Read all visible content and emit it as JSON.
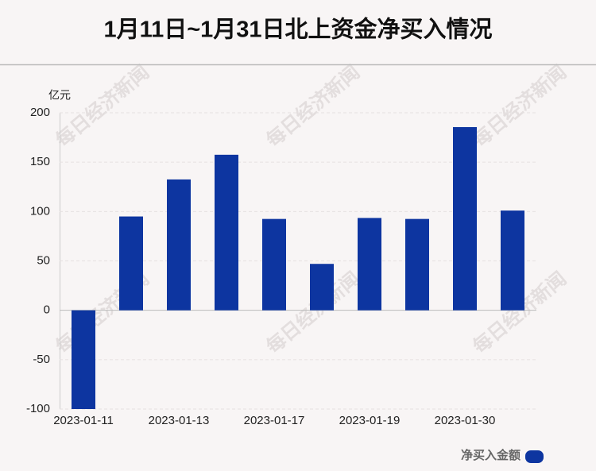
{
  "chart_data": {
    "type": "bar",
    "title": "1月11日~1月31日北上资金净买入情况",
    "y_unit": "亿元",
    "categories": [
      "2023-01-11",
      null,
      "2023-01-13",
      null,
      "2023-01-17",
      null,
      "2023-01-19",
      null,
      "2023-01-30",
      null
    ],
    "series": [
      {
        "name": "净买入金额",
        "color": "#0d35a0",
        "values": [
          -100,
          95,
          132.5,
          157.5,
          92.5,
          47,
          93.5,
          92.5,
          185.5,
          101
        ]
      }
    ],
    "ylim": [
      -100,
      200
    ],
    "yticks": [
      -100,
      -50,
      0,
      50,
      100,
      150,
      200
    ],
    "grid": true,
    "legend": "bottom-right"
  },
  "watermark": "每日经济新闻"
}
